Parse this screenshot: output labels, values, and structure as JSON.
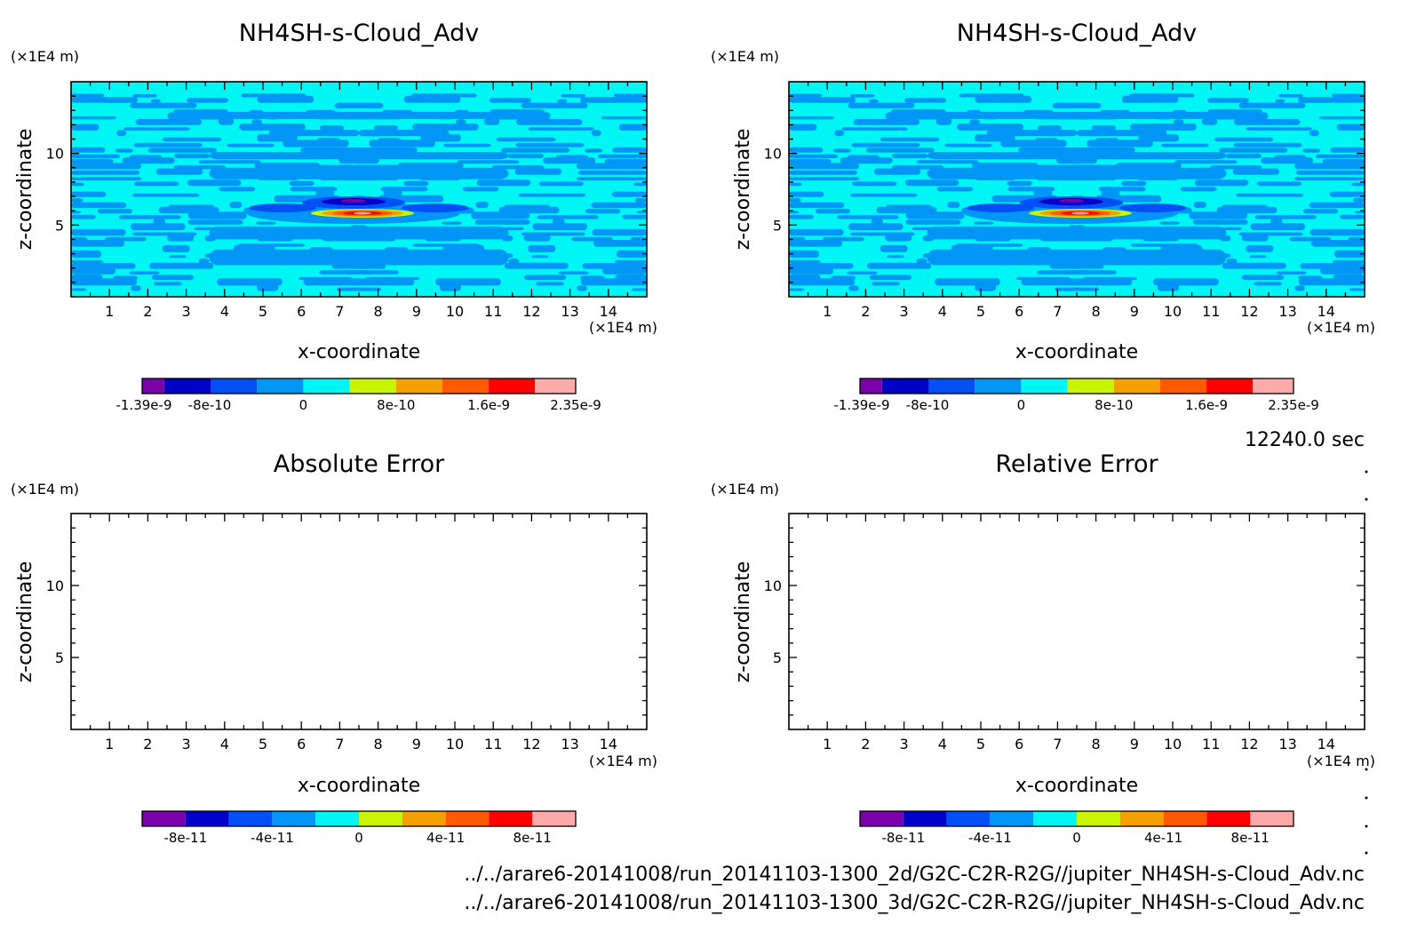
{
  "time_label": "12240.0 sec",
  "file_paths": [
    "../../arare6-20141008/run_20141103-1300_2d/G2C-C2R-R2G//jupiter_NH4SH-s-Cloud_Adv.nc",
    "../../arare6-20141008/run_20141103-1300_3d/G2C-C2R-R2G//jupiter_NH4SH-s-Cloud_Adv.nc"
  ],
  "colorbar_palette": [
    "#7a00aa",
    "#0000c8",
    "#0050f5",
    "#0096f5",
    "#00f5f5",
    "#c8f500",
    "#f5a000",
    "#ff5a00",
    "#ff0000",
    "#ffaaaa"
  ],
  "field_colors": {
    "background": "#00f5f5",
    "patch": "#0096f5"
  },
  "chart_data": [
    {
      "type": "heatmap",
      "title": "NH4SH-s-Cloud_Adv",
      "xlabel": "x-coordinate",
      "ylabel": "z-coordinate",
      "x_unit": "(×1E4 m)",
      "y_unit": "(×1E4 m)",
      "xlim": [
        0,
        15
      ],
      "ylim": [
        0,
        15
      ],
      "x_ticks": [
        "1",
        "2",
        "3",
        "4",
        "5",
        "6",
        "7",
        "8",
        "9",
        "10",
        "11",
        "12",
        "13",
        "14"
      ],
      "y_ticks": [
        "5",
        "10"
      ],
      "colorbar_ticks": [
        "-1.39e-9",
        "-8e-10",
        "0",
        "8e-10",
        "1.6e-9",
        "2.35e-9"
      ],
      "colorbar_range": [
        -1.39e-09,
        2.35e-09
      ],
      "filled": true
    },
    {
      "type": "heatmap",
      "title": "NH4SH-s-Cloud_Adv",
      "xlabel": "x-coordinate",
      "ylabel": "z-coordinate",
      "x_unit": "(×1E4 m)",
      "y_unit": "(×1E4 m)",
      "xlim": [
        0,
        15
      ],
      "ylim": [
        0,
        15
      ],
      "x_ticks": [
        "1",
        "2",
        "3",
        "4",
        "5",
        "6",
        "7",
        "8",
        "9",
        "10",
        "11",
        "12",
        "13",
        "14"
      ],
      "y_ticks": [
        "5",
        "10"
      ],
      "colorbar_ticks": [
        "-1.39e-9",
        "-8e-10",
        "0",
        "8e-10",
        "1.6e-9",
        "2.35e-9"
      ],
      "colorbar_range": [
        -1.39e-09,
        2.35e-09
      ],
      "filled": true
    },
    {
      "type": "heatmap",
      "title": "Absolute Error",
      "xlabel": "x-coordinate",
      "ylabel": "z-coordinate",
      "x_unit": "(×1E4 m)",
      "y_unit": "(×1E4 m)",
      "xlim": [
        0,
        15
      ],
      "ylim": [
        0,
        15
      ],
      "x_ticks": [
        "1",
        "2",
        "3",
        "4",
        "5",
        "6",
        "7",
        "8",
        "9",
        "10",
        "11",
        "12",
        "13",
        "14"
      ],
      "y_ticks": [
        "5",
        "10"
      ],
      "colorbar_ticks": [
        "-8e-11",
        "-4e-11",
        "0",
        "4e-11",
        "8e-11"
      ],
      "colorbar_range": [
        -1e-10,
        1e-10
      ],
      "filled": false
    },
    {
      "type": "heatmap",
      "title": "Relative Error",
      "xlabel": "x-coordinate",
      "ylabel": "z-coordinate",
      "x_unit": "(×1E4 m)",
      "y_unit": "(×1E4 m)",
      "xlim": [
        0,
        15
      ],
      "ylim": [
        0,
        15
      ],
      "x_ticks": [
        "1",
        "2",
        "3",
        "4",
        "5",
        "6",
        "7",
        "8",
        "9",
        "10",
        "11",
        "12",
        "13",
        "14"
      ],
      "y_ticks": [
        "5",
        "10"
      ],
      "colorbar_ticks": [
        "-8e-11",
        "-4e-11",
        "0",
        "4e-11",
        "8e-11"
      ],
      "colorbar_range": [
        -1e-10,
        1e-10
      ],
      "filled": false
    }
  ]
}
